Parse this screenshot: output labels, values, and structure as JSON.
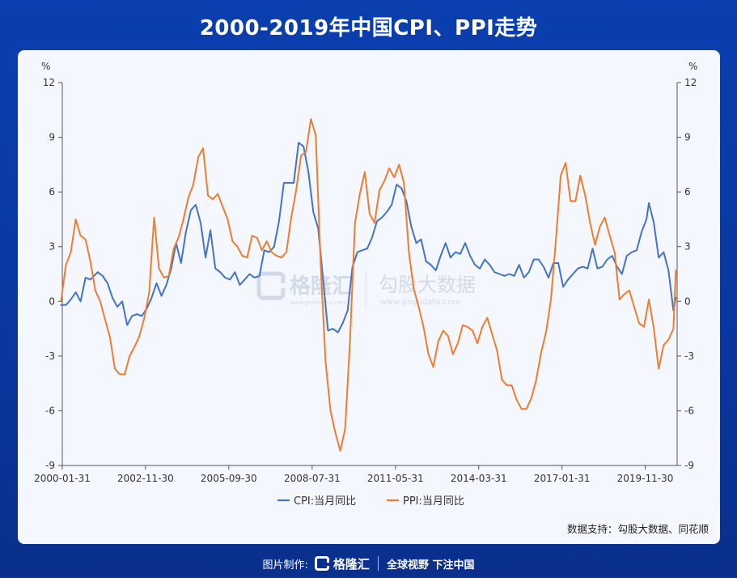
{
  "title": "2000-2019年中国CPI、PPI走势",
  "footer": {
    "credit": "图片制作:",
    "logo_text": "格隆汇",
    "slogan": "全球视野 下注中国"
  },
  "watermark": {
    "left_text": "格隆汇",
    "left_sub": "www.gelonghui.com",
    "right_text": "勾股大数据",
    "right_sub": "www.gogudata.com"
  },
  "colors": {
    "background": "#0b3fae",
    "panel": "#f4f7fd",
    "cpi": "#4472c4",
    "ppi": "#ed7d31"
  },
  "chart_data": {
    "type": "line",
    "title": "",
    "ylabel_left": "%",
    "ylabel_right": "%",
    "ylim": [
      -9,
      12
    ],
    "yticks": [
      -9,
      -6,
      -3,
      0,
      3,
      6,
      9,
      12
    ],
    "xlim": [
      "2000-01-31",
      "2020-12-31"
    ],
    "x_tick_labels": [
      "2000-01-31",
      "2002-11-30",
      "2005-09-30",
      "2008-07-31",
      "2011-05-31",
      "2014-03-31",
      "2017-01-31",
      "2019-11-30"
    ],
    "grid": false,
    "legend_position": "bottom",
    "source_note": "数据支持：勾股大数据、同花顺",
    "series": [
      {
        "name": "CPI:当月同比",
        "color": "#4472c4",
        "points": [
          [
            "2000-01",
            -0.2
          ],
          [
            "2000-03",
            -0.2
          ],
          [
            "2000-05",
            0.1
          ],
          [
            "2000-07",
            0.5
          ],
          [
            "2000-09",
            0.0
          ],
          [
            "2000-11",
            1.3
          ],
          [
            "2001-01",
            1.2
          ],
          [
            "2001-04",
            1.6
          ],
          [
            "2001-06",
            1.4
          ],
          [
            "2001-08",
            1.0
          ],
          [
            "2001-10",
            0.2
          ],
          [
            "2001-12",
            -0.3
          ],
          [
            "2002-02",
            0.0
          ],
          [
            "2002-04",
            -1.3
          ],
          [
            "2002-06",
            -0.8
          ],
          [
            "2002-08",
            -0.7
          ],
          [
            "2002-10",
            -0.8
          ],
          [
            "2002-12",
            -0.4
          ],
          [
            "2003-02",
            0.2
          ],
          [
            "2003-04",
            1.0
          ],
          [
            "2003-06",
            0.3
          ],
          [
            "2003-08",
            0.9
          ],
          [
            "2003-10",
            1.8
          ],
          [
            "2003-12",
            3.2
          ],
          [
            "2004-02",
            2.1
          ],
          [
            "2004-04",
            3.8
          ],
          [
            "2004-06",
            5.0
          ],
          [
            "2004-08",
            5.3
          ],
          [
            "2004-10",
            4.3
          ],
          [
            "2004-12",
            2.4
          ],
          [
            "2005-02",
            3.9
          ],
          [
            "2005-04",
            1.8
          ],
          [
            "2005-06",
            1.6
          ],
          [
            "2005-08",
            1.3
          ],
          [
            "2005-10",
            1.2
          ],
          [
            "2005-12",
            1.6
          ],
          [
            "2006-02",
            0.9
          ],
          [
            "2006-04",
            1.2
          ],
          [
            "2006-06",
            1.5
          ],
          [
            "2006-08",
            1.3
          ],
          [
            "2006-10",
            1.4
          ],
          [
            "2006-12",
            2.8
          ],
          [
            "2007-02",
            2.7
          ],
          [
            "2007-04",
            3.0
          ],
          [
            "2007-06",
            4.4
          ],
          [
            "2007-08",
            6.5
          ],
          [
            "2007-10",
            6.5
          ],
          [
            "2007-12",
            6.5
          ],
          [
            "2008-02",
            8.7
          ],
          [
            "2008-04",
            8.5
          ],
          [
            "2008-06",
            7.1
          ],
          [
            "2008-08",
            4.9
          ],
          [
            "2008-10",
            4.0
          ],
          [
            "2008-12",
            1.2
          ],
          [
            "2009-02",
            -1.6
          ],
          [
            "2009-04",
            -1.5
          ],
          [
            "2009-06",
            -1.7
          ],
          [
            "2009-08",
            -1.2
          ],
          [
            "2009-10",
            -0.5
          ],
          [
            "2009-12",
            1.9
          ],
          [
            "2010-02",
            2.7
          ],
          [
            "2010-04",
            2.8
          ],
          [
            "2010-06",
            2.9
          ],
          [
            "2010-08",
            3.5
          ],
          [
            "2010-10",
            4.4
          ],
          [
            "2010-12",
            4.6
          ],
          [
            "2011-02",
            4.9
          ],
          [
            "2011-04",
            5.3
          ],
          [
            "2011-06",
            6.4
          ],
          [
            "2011-08",
            6.2
          ],
          [
            "2011-10",
            5.5
          ],
          [
            "2011-12",
            4.1
          ],
          [
            "2012-02",
            3.2
          ],
          [
            "2012-04",
            3.4
          ],
          [
            "2012-06",
            2.2
          ],
          [
            "2012-08",
            2.0
          ],
          [
            "2012-10",
            1.7
          ],
          [
            "2012-12",
            2.5
          ],
          [
            "2013-02",
            3.2
          ],
          [
            "2013-04",
            2.4
          ],
          [
            "2013-06",
            2.7
          ],
          [
            "2013-08",
            2.6
          ],
          [
            "2013-10",
            3.2
          ],
          [
            "2013-12",
            2.5
          ],
          [
            "2014-02",
            2.0
          ],
          [
            "2014-04",
            1.8
          ],
          [
            "2014-06",
            2.3
          ],
          [
            "2014-08",
            2.0
          ],
          [
            "2014-10",
            1.6
          ],
          [
            "2014-12",
            1.5
          ],
          [
            "2015-02",
            1.4
          ],
          [
            "2015-04",
            1.5
          ],
          [
            "2015-06",
            1.4
          ],
          [
            "2015-08",
            2.0
          ],
          [
            "2015-10",
            1.3
          ],
          [
            "2015-12",
            1.6
          ],
          [
            "2016-02",
            2.3
          ],
          [
            "2016-04",
            2.3
          ],
          [
            "2016-06",
            1.9
          ],
          [
            "2016-08",
            1.3
          ],
          [
            "2016-10",
            2.1
          ],
          [
            "2016-12",
            2.1
          ],
          [
            "2017-02",
            0.8
          ],
          [
            "2017-04",
            1.2
          ],
          [
            "2017-06",
            1.5
          ],
          [
            "2017-08",
            1.8
          ],
          [
            "2017-10",
            1.9
          ],
          [
            "2017-12",
            1.8
          ],
          [
            "2018-02",
            2.9
          ],
          [
            "2018-04",
            1.8
          ],
          [
            "2018-06",
            1.9
          ],
          [
            "2018-08",
            2.3
          ],
          [
            "2018-10",
            2.5
          ],
          [
            "2018-12",
            1.9
          ],
          [
            "2019-02",
            1.5
          ],
          [
            "2019-04",
            2.5
          ],
          [
            "2019-06",
            2.7
          ],
          [
            "2019-08",
            2.8
          ],
          [
            "2019-10",
            3.8
          ],
          [
            "2019-12",
            4.5
          ],
          [
            "2020-01",
            5.4
          ],
          [
            "2020-03",
            4.3
          ],
          [
            "2020-05",
            2.4
          ],
          [
            "2020-07",
            2.7
          ],
          [
            "2020-09",
            1.7
          ],
          [
            "2020-11",
            -0.5
          ],
          [
            "2020-12",
            0.2
          ]
        ]
      },
      {
        "name": "PPI:当月同比",
        "color": "#ed7d31",
        "points": [
          [
            "2000-01",
            0.0
          ],
          [
            "2000-03",
            2.0
          ],
          [
            "2000-05",
            2.7
          ],
          [
            "2000-07",
            4.5
          ],
          [
            "2000-09",
            3.6
          ],
          [
            "2000-11",
            3.4
          ],
          [
            "2001-01",
            2.2
          ],
          [
            "2001-03",
            0.6
          ],
          [
            "2001-05",
            0.0
          ],
          [
            "2001-07",
            -1.0
          ],
          [
            "2001-09",
            -2.0
          ],
          [
            "2001-11",
            -3.7
          ],
          [
            "2002-01",
            -4.0
          ],
          [
            "2002-03",
            -4.0
          ],
          [
            "2002-05",
            -3.0
          ],
          [
            "2002-07",
            -2.5
          ],
          [
            "2002-09",
            -1.9
          ],
          [
            "2002-11",
            -0.9
          ],
          [
            "2003-01",
            0.5
          ],
          [
            "2003-03",
            4.6
          ],
          [
            "2003-05",
            1.8
          ],
          [
            "2003-07",
            1.3
          ],
          [
            "2003-09",
            1.4
          ],
          [
            "2003-11",
            2.9
          ],
          [
            "2004-01",
            3.5
          ],
          [
            "2004-03",
            4.5
          ],
          [
            "2004-05",
            5.7
          ],
          [
            "2004-07",
            6.4
          ],
          [
            "2004-09",
            7.9
          ],
          [
            "2004-11",
            8.4
          ],
          [
            "2005-01",
            5.8
          ],
          [
            "2005-03",
            5.6
          ],
          [
            "2005-05",
            5.9
          ],
          [
            "2005-07",
            5.2
          ],
          [
            "2005-09",
            4.5
          ],
          [
            "2005-11",
            3.3
          ],
          [
            "2006-01",
            3.0
          ],
          [
            "2006-03",
            2.5
          ],
          [
            "2006-05",
            2.4
          ],
          [
            "2006-07",
            3.6
          ],
          [
            "2006-09",
            3.5
          ],
          [
            "2006-11",
            2.8
          ],
          [
            "2007-01",
            3.3
          ],
          [
            "2007-03",
            2.7
          ],
          [
            "2007-05",
            2.5
          ],
          [
            "2007-07",
            2.4
          ],
          [
            "2007-09",
            2.7
          ],
          [
            "2007-11",
            4.6
          ],
          [
            "2008-01",
            6.1
          ],
          [
            "2008-03",
            8.0
          ],
          [
            "2008-05",
            8.2
          ],
          [
            "2008-07",
            10.0
          ],
          [
            "2008-09",
            9.1
          ],
          [
            "2008-11",
            2.0
          ],
          [
            "2009-01",
            -3.3
          ],
          [
            "2009-03",
            -6.0
          ],
          [
            "2009-05",
            -7.2
          ],
          [
            "2009-07",
            -8.2
          ],
          [
            "2009-09",
            -7.0
          ],
          [
            "2009-11",
            -2.1
          ],
          [
            "2010-01",
            4.3
          ],
          [
            "2010-03",
            5.9
          ],
          [
            "2010-05",
            7.1
          ],
          [
            "2010-07",
            4.8
          ],
          [
            "2010-09",
            4.3
          ],
          [
            "2010-11",
            6.1
          ],
          [
            "2011-01",
            6.6
          ],
          [
            "2011-03",
            7.3
          ],
          [
            "2011-05",
            6.8
          ],
          [
            "2011-07",
            7.5
          ],
          [
            "2011-09",
            6.5
          ],
          [
            "2011-11",
            2.7
          ],
          [
            "2012-01",
            0.7
          ],
          [
            "2012-03",
            -0.3
          ],
          [
            "2012-05",
            -1.4
          ],
          [
            "2012-07",
            -2.9
          ],
          [
            "2012-09",
            -3.6
          ],
          [
            "2012-11",
            -2.2
          ],
          [
            "2013-01",
            -1.6
          ],
          [
            "2013-03",
            -1.9
          ],
          [
            "2013-05",
            -2.9
          ],
          [
            "2013-07",
            -2.3
          ],
          [
            "2013-09",
            -1.3
          ],
          [
            "2013-11",
            -1.4
          ],
          [
            "2014-01",
            -1.6
          ],
          [
            "2014-03",
            -2.3
          ],
          [
            "2014-05",
            -1.4
          ],
          [
            "2014-07",
            -0.9
          ],
          [
            "2014-09",
            -1.8
          ],
          [
            "2014-11",
            -2.7
          ],
          [
            "2015-01",
            -4.3
          ],
          [
            "2015-03",
            -4.6
          ],
          [
            "2015-05",
            -4.6
          ],
          [
            "2015-07",
            -5.4
          ],
          [
            "2015-09",
            -5.9
          ],
          [
            "2015-11",
            -5.9
          ],
          [
            "2016-01",
            -5.3
          ],
          [
            "2016-03",
            -4.3
          ],
          [
            "2016-05",
            -2.8
          ],
          [
            "2016-07",
            -1.7
          ],
          [
            "2016-09",
            0.1
          ],
          [
            "2016-11",
            3.3
          ],
          [
            "2017-01",
            6.9
          ],
          [
            "2017-03",
            7.6
          ],
          [
            "2017-05",
            5.5
          ],
          [
            "2017-07",
            5.5
          ],
          [
            "2017-09",
            6.9
          ],
          [
            "2017-11",
            5.8
          ],
          [
            "2018-01",
            4.3
          ],
          [
            "2018-03",
            3.1
          ],
          [
            "2018-05",
            4.1
          ],
          [
            "2018-07",
            4.6
          ],
          [
            "2018-09",
            3.6
          ],
          [
            "2018-11",
            2.7
          ],
          [
            "2019-01",
            0.1
          ],
          [
            "2019-03",
            0.4
          ],
          [
            "2019-05",
            0.6
          ],
          [
            "2019-07",
            -0.3
          ],
          [
            "2019-09",
            -1.2
          ],
          [
            "2019-11",
            -1.4
          ],
          [
            "2020-01",
            0.1
          ],
          [
            "2020-03",
            -1.5
          ],
          [
            "2020-05",
            -3.7
          ],
          [
            "2020-07",
            -2.4
          ],
          [
            "2020-09",
            -2.1
          ],
          [
            "2020-11",
            -1.5
          ],
          [
            "2020-12",
            1.7
          ]
        ]
      }
    ]
  }
}
